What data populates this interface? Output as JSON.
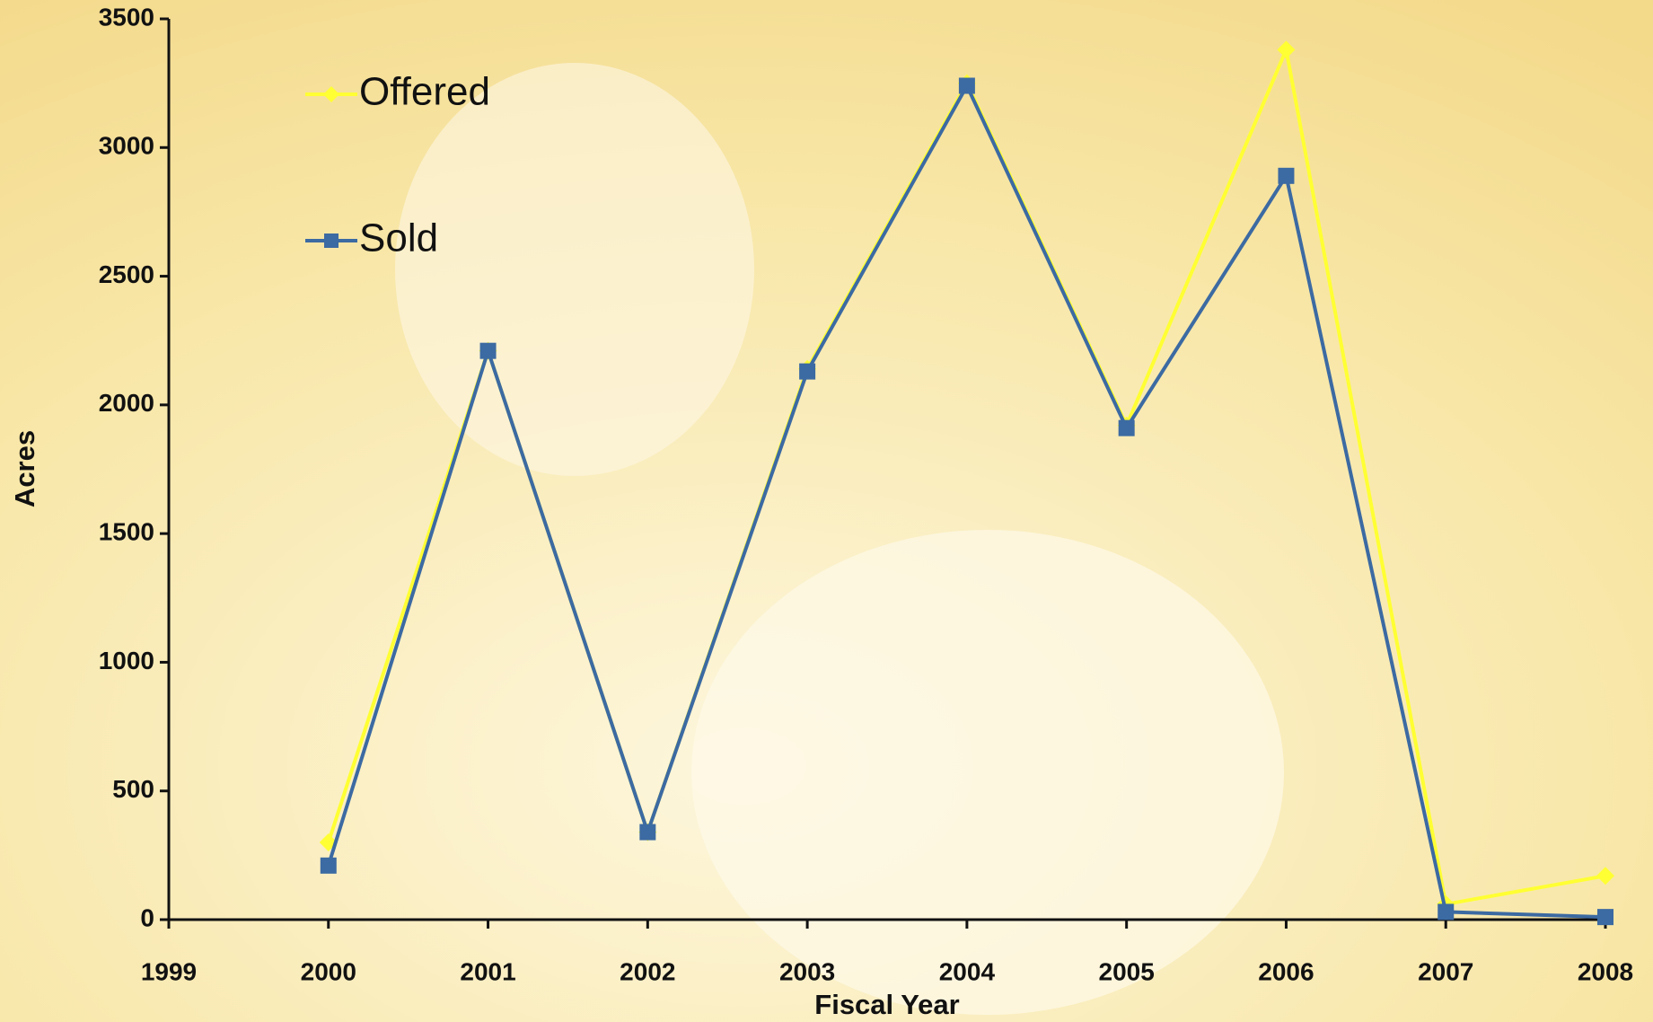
{
  "chart_data": {
    "type": "line",
    "x": [
      2000,
      2001,
      2002,
      2003,
      2004,
      2005,
      2006,
      2007,
      2008
    ],
    "series": [
      {
        "name": "Offered",
        "color": "#ffff33",
        "marker": "diamond",
        "values": [
          300,
          2210,
          340,
          2140,
          3250,
          1920,
          3380,
          60,
          170
        ]
      },
      {
        "name": "Sold",
        "color": "#3c6aa2",
        "marker": "square",
        "values": [
          210,
          2210,
          340,
          2130,
          3240,
          1910,
          2890,
          30,
          10
        ]
      }
    ],
    "xlabel": "Fiscal Year",
    "ylabel": "Acres",
    "xlim": [
      1999,
      2008
    ],
    "xticks": [
      1999,
      2000,
      2001,
      2002,
      2003,
      2004,
      2005,
      2006,
      2007,
      2008
    ],
    "ylim": [
      0,
      3500
    ],
    "yticks": [
      0,
      500,
      1000,
      1500,
      2000,
      2500,
      3000,
      3500
    ],
    "grid": false,
    "legend": "upper left"
  }
}
